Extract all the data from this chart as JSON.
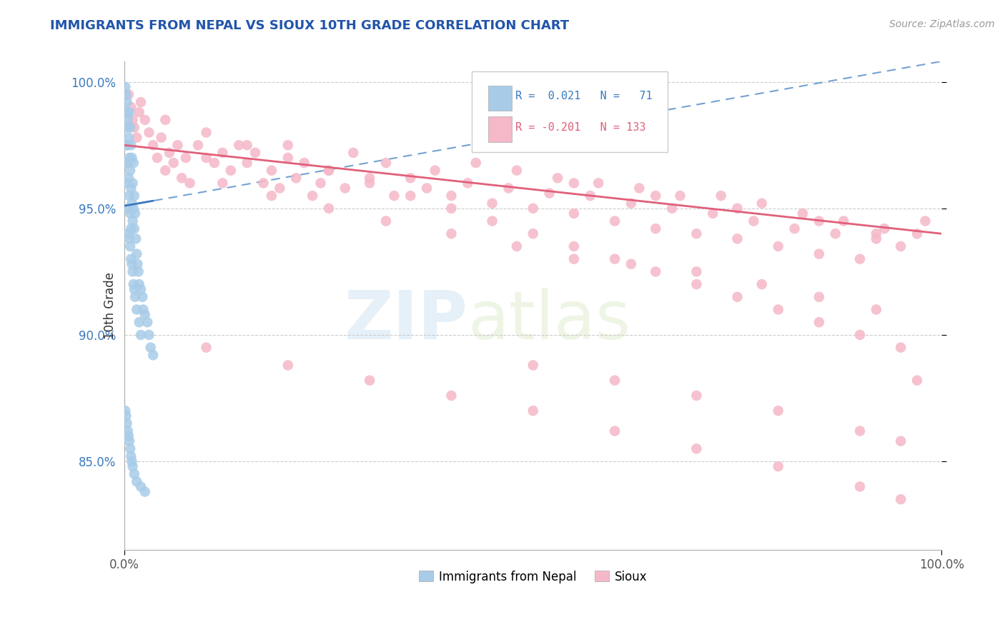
{
  "title": "IMMIGRANTS FROM NEPAL VS SIOUX 10TH GRADE CORRELATION CHART",
  "source_text": "Source: ZipAtlas.com",
  "ylabel": "10th Grade",
  "xlim": [
    0.0,
    1.0
  ],
  "ylim": [
    0.815,
    1.008
  ],
  "ytick_labels": [
    "85.0%",
    "90.0%",
    "95.0%",
    "100.0%"
  ],
  "ytick_vals": [
    0.85,
    0.9,
    0.95,
    1.0
  ],
  "xtick_labels": [
    "0.0%",
    "100.0%"
  ],
  "xtick_vals": [
    0.0,
    1.0
  ],
  "legend_r_blue": "0.021",
  "legend_n_blue": "71",
  "legend_r_pink": "-0.201",
  "legend_n_pink": "133",
  "legend_label_blue": "Immigrants from Nepal",
  "legend_label_pink": "Sioux",
  "blue_color": "#a8cce8",
  "pink_color": "#f5b8c8",
  "blue_line_color": "#3a7abf",
  "pink_line_color": "#e0607a",
  "blue_scatter_x": [
    0.002,
    0.003,
    0.003,
    0.004,
    0.004,
    0.005,
    0.005,
    0.005,
    0.006,
    0.006,
    0.006,
    0.007,
    0.007,
    0.007,
    0.008,
    0.008,
    0.008,
    0.009,
    0.009,
    0.01,
    0.01,
    0.011,
    0.011,
    0.012,
    0.012,
    0.013,
    0.014,
    0.015,
    0.016,
    0.017,
    0.018,
    0.02,
    0.022,
    0.023,
    0.025,
    0.028,
    0.03,
    0.032,
    0.035,
    0.001,
    0.002,
    0.003,
    0.003,
    0.004,
    0.004,
    0.005,
    0.006,
    0.007,
    0.008,
    0.009,
    0.01,
    0.011,
    0.012,
    0.013,
    0.015,
    0.018,
    0.02,
    0.001,
    0.002,
    0.003,
    0.004,
    0.005,
    0.006,
    0.007,
    0.008,
    0.009,
    0.01,
    0.012,
    0.015,
    0.02,
    0.025
  ],
  "blue_scatter_y": [
    0.96,
    0.975,
    0.992,
    0.968,
    0.985,
    0.95,
    0.962,
    0.978,
    0.955,
    0.97,
    0.988,
    0.948,
    0.965,
    0.982,
    0.942,
    0.958,
    0.975,
    0.952,
    0.97,
    0.945,
    0.96,
    0.95,
    0.968,
    0.942,
    0.955,
    0.948,
    0.938,
    0.932,
    0.928,
    0.925,
    0.92,
    0.918,
    0.915,
    0.91,
    0.908,
    0.905,
    0.9,
    0.895,
    0.892,
    0.998,
    0.995,
    0.988,
    0.982,
    0.975,
    0.968,
    0.94,
    0.938,
    0.935,
    0.93,
    0.928,
    0.925,
    0.92,
    0.918,
    0.915,
    0.91,
    0.905,
    0.9,
    0.87,
    0.868,
    0.865,
    0.862,
    0.86,
    0.858,
    0.855,
    0.852,
    0.85,
    0.848,
    0.845,
    0.842,
    0.84,
    0.838
  ],
  "pink_scatter_x": [
    0.005,
    0.008,
    0.01,
    0.012,
    0.015,
    0.018,
    0.02,
    0.025,
    0.03,
    0.035,
    0.04,
    0.045,
    0.05,
    0.055,
    0.06,
    0.065,
    0.07,
    0.075,
    0.08,
    0.09,
    0.1,
    0.11,
    0.12,
    0.13,
    0.14,
    0.15,
    0.16,
    0.17,
    0.18,
    0.19,
    0.2,
    0.21,
    0.22,
    0.23,
    0.24,
    0.25,
    0.27,
    0.28,
    0.3,
    0.32,
    0.33,
    0.35,
    0.37,
    0.38,
    0.4,
    0.42,
    0.43,
    0.45,
    0.47,
    0.48,
    0.5,
    0.52,
    0.53,
    0.55,
    0.57,
    0.58,
    0.6,
    0.62,
    0.63,
    0.65,
    0.67,
    0.68,
    0.7,
    0.72,
    0.73,
    0.75,
    0.77,
    0.78,
    0.8,
    0.82,
    0.83,
    0.85,
    0.87,
    0.88,
    0.9,
    0.92,
    0.93,
    0.95,
    0.97,
    0.98,
    0.12,
    0.18,
    0.25,
    0.32,
    0.4,
    0.48,
    0.55,
    0.62,
    0.7,
    0.78,
    0.85,
    0.92,
    0.05,
    0.1,
    0.15,
    0.2,
    0.25,
    0.3,
    0.35,
    0.4,
    0.45,
    0.5,
    0.55,
    0.6,
    0.65,
    0.7,
    0.75,
    0.8,
    0.85,
    0.9,
    0.95,
    0.1,
    0.2,
    0.3,
    0.4,
    0.5,
    0.6,
    0.7,
    0.8,
    0.9,
    0.95,
    0.55,
    0.65,
    0.75,
    0.85,
    0.92,
    0.97,
    0.5,
    0.6,
    0.7,
    0.8,
    0.9,
    0.95
  ],
  "pink_scatter_y": [
    0.995,
    0.99,
    0.985,
    0.982,
    0.978,
    0.988,
    0.992,
    0.985,
    0.98,
    0.975,
    0.97,
    0.978,
    0.965,
    0.972,
    0.968,
    0.975,
    0.962,
    0.97,
    0.96,
    0.975,
    0.97,
    0.968,
    0.972,
    0.965,
    0.975,
    0.968,
    0.972,
    0.96,
    0.965,
    0.958,
    0.975,
    0.962,
    0.968,
    0.955,
    0.96,
    0.965,
    0.958,
    0.972,
    0.962,
    0.968,
    0.955,
    0.962,
    0.958,
    0.965,
    0.955,
    0.96,
    0.968,
    0.952,
    0.958,
    0.965,
    0.95,
    0.956,
    0.962,
    0.948,
    0.955,
    0.96,
    0.945,
    0.952,
    0.958,
    0.942,
    0.95,
    0.955,
    0.94,
    0.948,
    0.955,
    0.938,
    0.945,
    0.952,
    0.935,
    0.942,
    0.948,
    0.932,
    0.94,
    0.945,
    0.93,
    0.938,
    0.942,
    0.935,
    0.94,
    0.945,
    0.96,
    0.955,
    0.95,
    0.945,
    0.94,
    0.935,
    0.93,
    0.928,
    0.925,
    0.92,
    0.915,
    0.91,
    0.985,
    0.98,
    0.975,
    0.97,
    0.965,
    0.96,
    0.955,
    0.95,
    0.945,
    0.94,
    0.935,
    0.93,
    0.925,
    0.92,
    0.915,
    0.91,
    0.905,
    0.9,
    0.895,
    0.895,
    0.888,
    0.882,
    0.876,
    0.87,
    0.862,
    0.855,
    0.848,
    0.84,
    0.835,
    0.96,
    0.955,
    0.95,
    0.945,
    0.94,
    0.882,
    0.888,
    0.882,
    0.876,
    0.87,
    0.862,
    0.858
  ]
}
